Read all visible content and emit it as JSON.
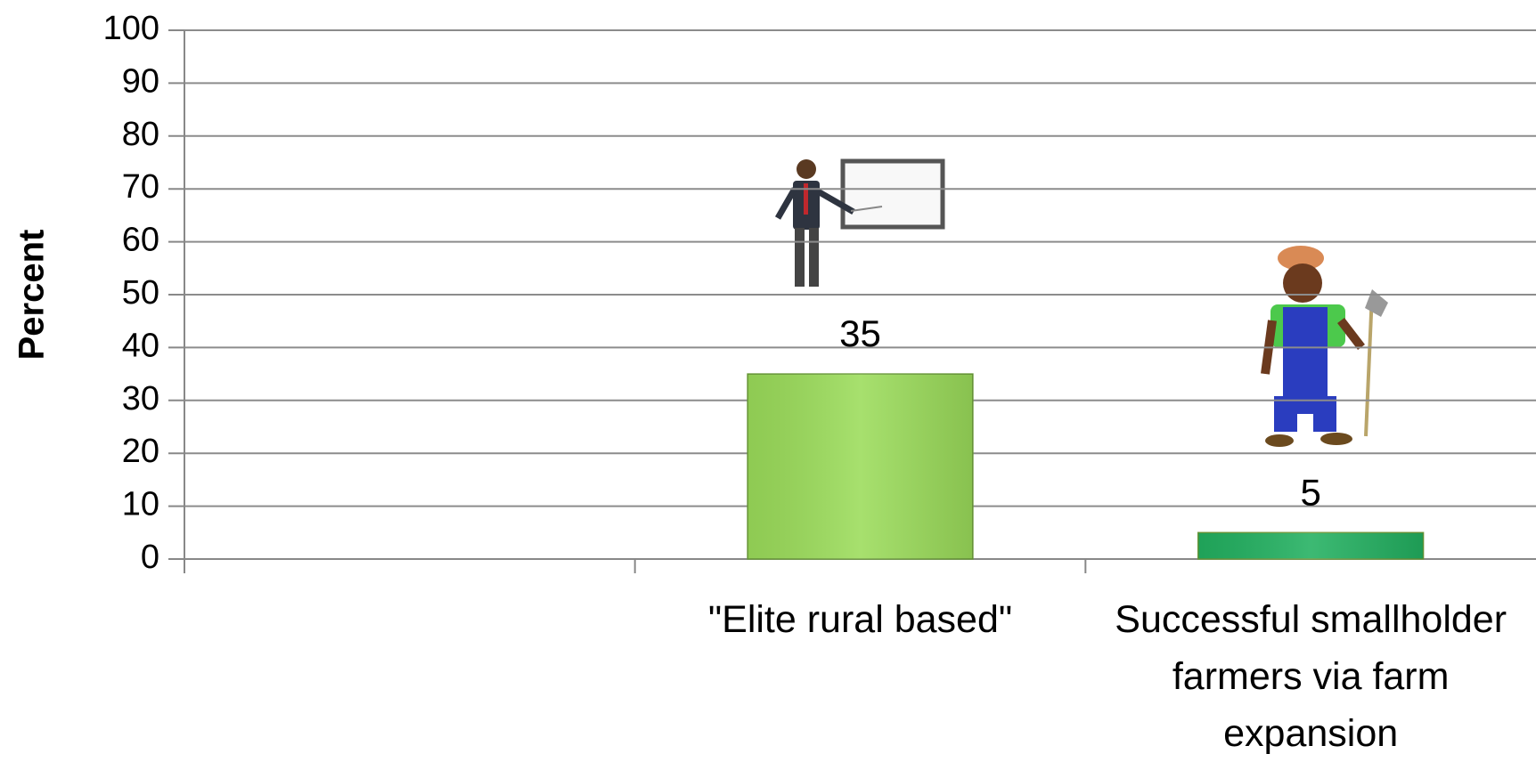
{
  "chart_data": {
    "type": "bar",
    "y_label": "Percent",
    "categories": [
      null,
      "\"Elite rural based\"",
      "Successful smallholder farmers via farm expansion"
    ],
    "values": [
      null,
      35,
      5
    ],
    "colors": [
      null,
      "#9bdc5a",
      "#22b060"
    ],
    "ylim": [
      0,
      100
    ],
    "yticks": [
      0,
      10,
      20,
      30,
      40,
      50,
      60,
      70,
      80,
      90,
      100
    ],
    "grid": true
  }
}
